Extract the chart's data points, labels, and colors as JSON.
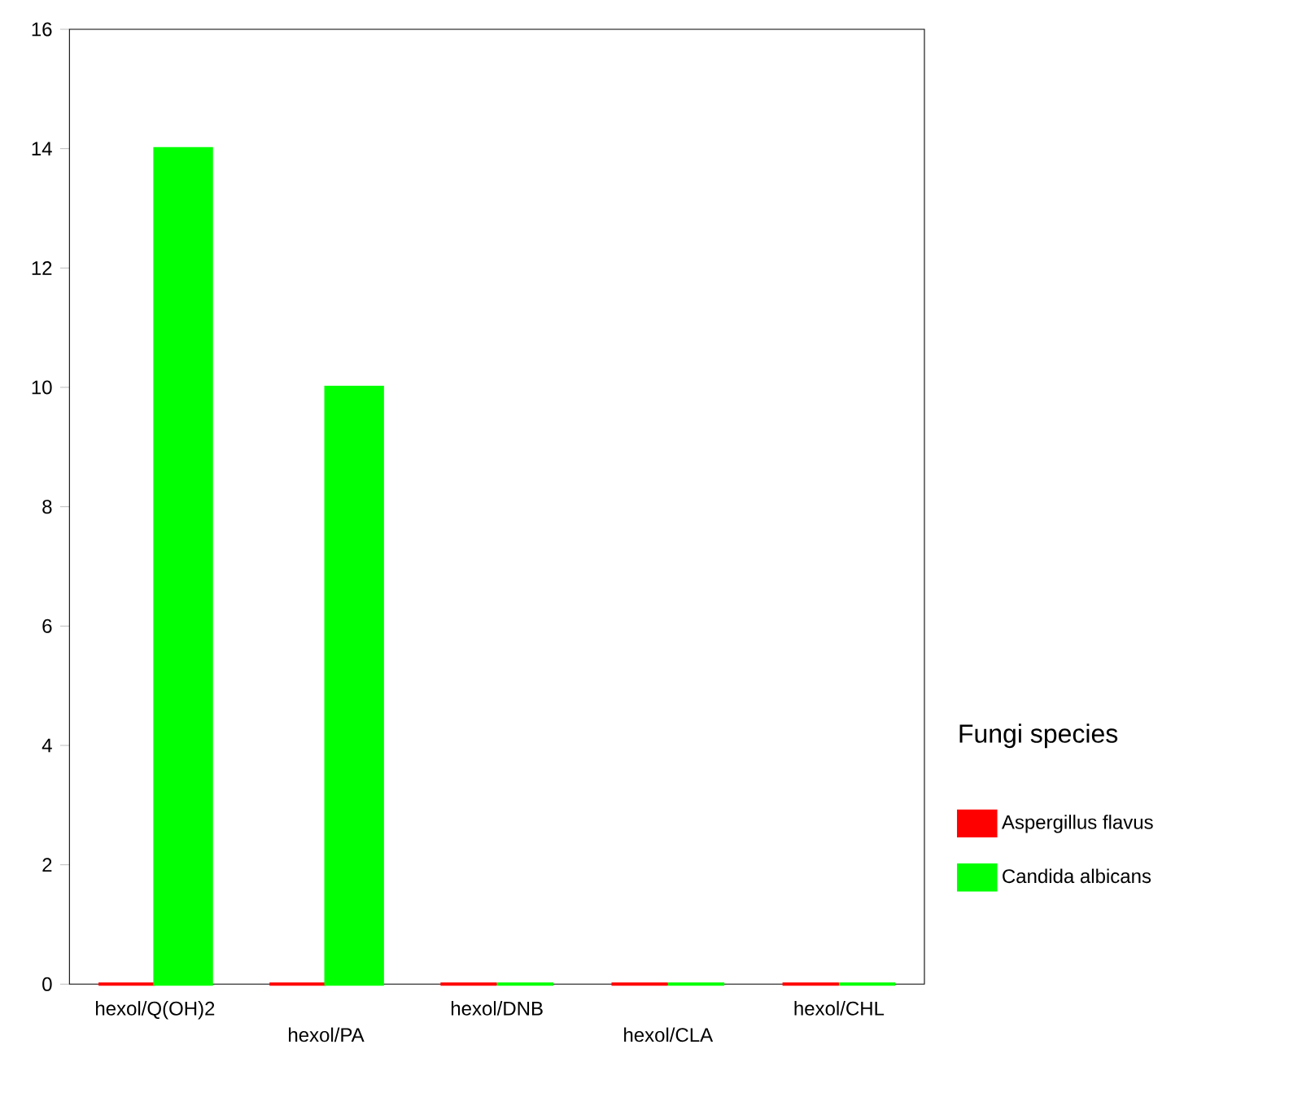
{
  "chart_data": {
    "type": "bar",
    "legend_title": "Fungi species",
    "categories": [
      "hexol/Q(OH)2",
      "hexol/PA",
      "hexol/DNB",
      "hexol/CLA",
      "hexol/CHL"
    ],
    "series": [
      {
        "name": "Aspergillus flavus",
        "color": "#ff0000",
        "values": [
          0,
          0,
          0,
          0,
          0
        ]
      },
      {
        "name": "Candida albicans",
        "color": "#00ff00",
        "values": [
          14,
          10,
          0,
          0,
          0
        ]
      }
    ],
    "ylim": [
      0,
      16
    ],
    "yticks": [
      0,
      2,
      4,
      6,
      8,
      10,
      12,
      14,
      16
    ],
    "legend": "right",
    "grid": false
  }
}
